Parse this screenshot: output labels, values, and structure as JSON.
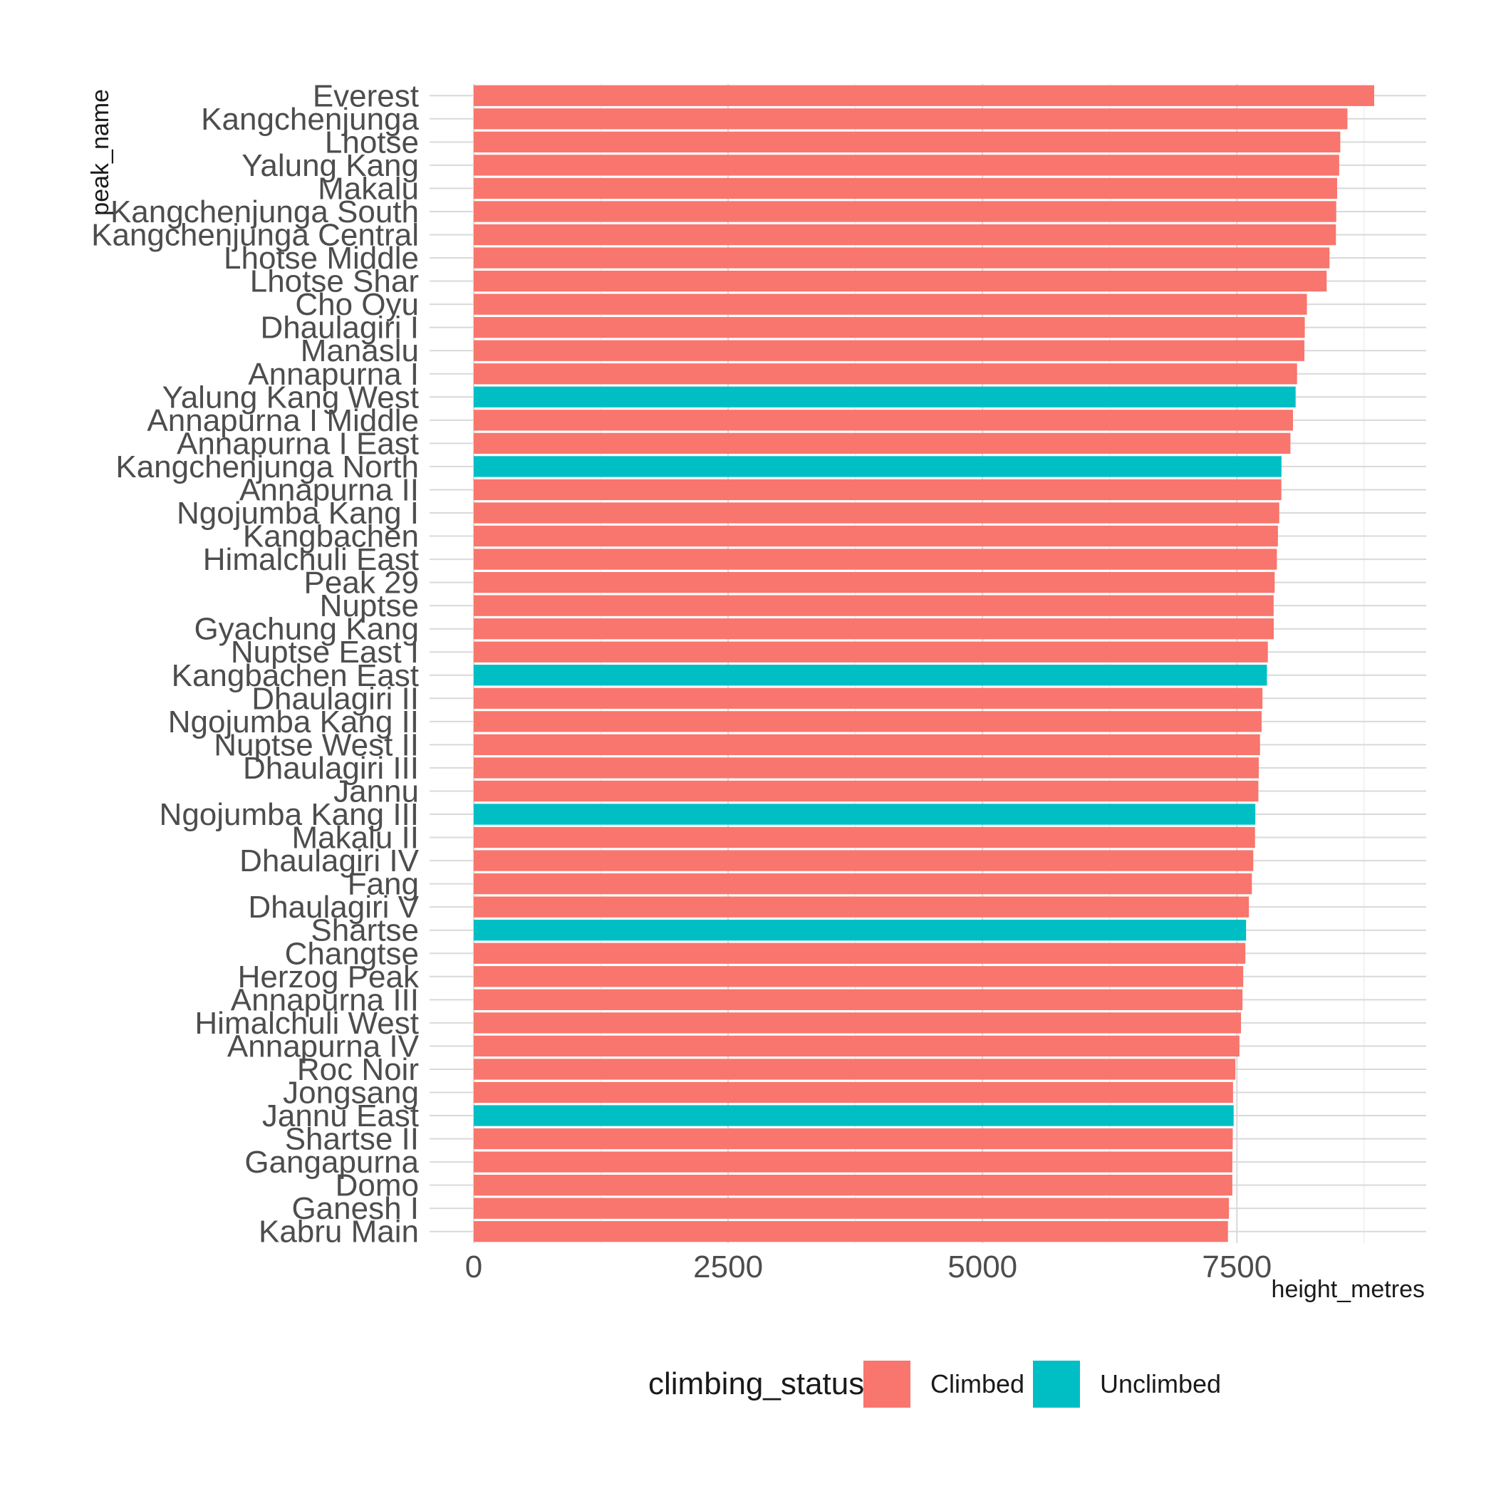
{
  "chart_data": {
    "type": "bar",
    "orientation": "horizontal",
    "xlabel": "height_metres",
    "ylabel": "peak_name",
    "xlim": [
      0,
      9300
    ],
    "x_ticks": [
      0,
      2500,
      5000,
      7500
    ],
    "x_tick_labels": [
      "0",
      "2500",
      "5000",
      "7500"
    ],
    "grid": true,
    "legend": {
      "title": "climbing_status",
      "position": "bottom",
      "entries": [
        {
          "label": "Climbed",
          "color": "#f8766d"
        },
        {
          "label": "Unclimbed",
          "color": "#00bfc4"
        }
      ]
    },
    "categories": [
      "Everest",
      "Kangchenjunga",
      "Lhotse",
      "Yalung Kang",
      "Makalu",
      "Kangchenjunga South",
      "Kangchenjunga Central",
      "Lhotse Middle",
      "Lhotse Shar",
      "Cho Oyu",
      "Dhaulagiri I",
      "Manaslu",
      "Annapurna I",
      "Yalung Kang West",
      "Annapurna I Middle",
      "Annapurna I East",
      "Kangchenjunga North",
      "Annapurna II",
      "Ngojumba Kang I",
      "Kangbachen",
      "Himalchuli East",
      "Peak 29",
      "Nuptse",
      "Gyachung Kang",
      "Nuptse East I",
      "Kangbachen East",
      "Dhaulagiri II",
      "Ngojumba Kang II",
      "Nuptse West II",
      "Dhaulagiri III",
      "Jannu",
      "Ngojumba Kang III",
      "Makalu II",
      "Dhaulagiri IV",
      "Fang",
      "Dhaulagiri V",
      "Shartse",
      "Changtse",
      "Herzog Peak",
      "Annapurna III",
      "Himalchuli West",
      "Annapurna IV",
      "Roc Noir",
      "Jongsang",
      "Jannu East",
      "Shartse II",
      "Gangapurna",
      "Domo",
      "Ganesh I",
      "Kabru Main"
    ],
    "values": [
      8849,
      8586,
      8516,
      8505,
      8485,
      8476,
      8473,
      8410,
      8382,
      8188,
      8167,
      8163,
      8091,
      8077,
      8051,
      8026,
      7938,
      7937,
      7916,
      7903,
      7893,
      7871,
      7861,
      7862,
      7804,
      7795,
      7751,
      7743,
      7727,
      7715,
      7711,
      7681,
      7678,
      7661,
      7647,
      7618,
      7590,
      7583,
      7562,
      7555,
      7540,
      7525,
      7485,
      7462,
      7468,
      7459,
      7455,
      7455,
      7422,
      7412
    ],
    "status": [
      "Climbed",
      "Climbed",
      "Climbed",
      "Climbed",
      "Climbed",
      "Climbed",
      "Climbed",
      "Climbed",
      "Climbed",
      "Climbed",
      "Climbed",
      "Climbed",
      "Climbed",
      "Unclimbed",
      "Climbed",
      "Climbed",
      "Unclimbed",
      "Climbed",
      "Climbed",
      "Climbed",
      "Climbed",
      "Climbed",
      "Climbed",
      "Climbed",
      "Climbed",
      "Unclimbed",
      "Climbed",
      "Climbed",
      "Climbed",
      "Climbed",
      "Climbed",
      "Unclimbed",
      "Climbed",
      "Climbed",
      "Climbed",
      "Climbed",
      "Unclimbed",
      "Climbed",
      "Climbed",
      "Climbed",
      "Climbed",
      "Climbed",
      "Climbed",
      "Climbed",
      "Unclimbed",
      "Climbed",
      "Climbed",
      "Climbed",
      "Climbed",
      "Climbed"
    ]
  }
}
